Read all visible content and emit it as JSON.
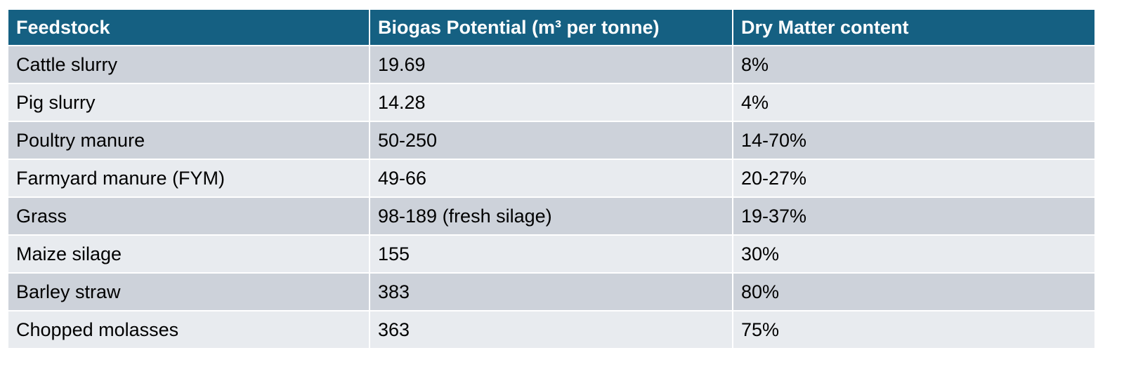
{
  "table": {
    "header": [
      "Feedstock",
      "Biogas Potential (m³ per tonne)",
      "Dry Matter content"
    ],
    "rows": [
      [
        "Cattle slurry",
        "19.69",
        "8%"
      ],
      [
        "Pig slurry",
        "14.28",
        "4%"
      ],
      [
        "Poultry manure",
        "50-250",
        "14-70%"
      ],
      [
        "Farmyard manure (FYM)",
        "49-66",
        "20-27%"
      ],
      [
        "Grass",
        "98-189 (fresh silage)",
        "19-37%"
      ],
      [
        "Maize silage",
        "155",
        "30%"
      ],
      [
        "Barley straw",
        "383",
        "80%"
      ],
      [
        "Chopped molasses",
        "363",
        "75%"
      ]
    ]
  }
}
